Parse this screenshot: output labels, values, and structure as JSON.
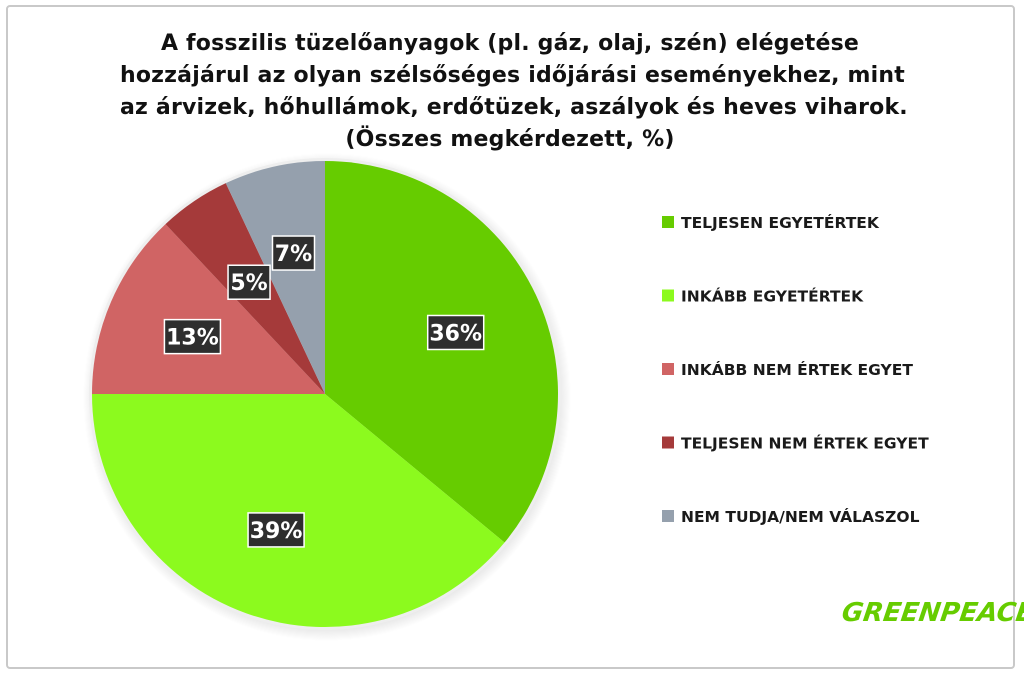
{
  "chart_data": {
    "type": "pie",
    "title_lines": [
      "A fosszilis tüzelőanyagok (pl. gáz, olaj, szén) elégetése",
      "hozzájárul az olyan szélsőséges időjárási eseményekhez, mint",
      "az árvizek, hőhullámok, erdőtüzek, aszályok és heves viharok.",
      "(Összes megkérdezett, %)"
    ],
    "legend_position": "right",
    "slices": [
      {
        "label": "TELJESEN EGYETÉRTEK",
        "value": 36,
        "display": "36%",
        "color": "#66cc00"
      },
      {
        "label": "INKÁBB EGYETÉRTEK",
        "value": 39,
        "display": "39%",
        "color": "#8cfa1e"
      },
      {
        "label": "INKÁBB NEM ÉRTEK EGYET",
        "value": 13,
        "display": "13%",
        "color": "#d06464"
      },
      {
        "label": "TELJESEN NEM ÉRTEK EGYET",
        "value": 5,
        "display": "5%",
        "color": "#a53a3a"
      },
      {
        "label": "NEM TUDJA/NEM VÁLASZOL",
        "value": 7,
        "display": "7%",
        "color": "#95a0ad"
      }
    ]
  },
  "logo": {
    "text": "GREENPEACE",
    "color": "#66cc00"
  }
}
